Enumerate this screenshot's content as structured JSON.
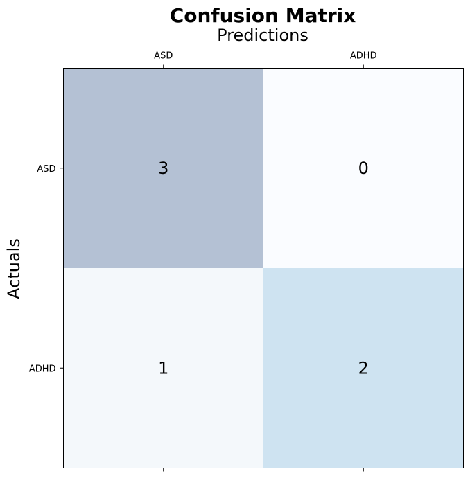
{
  "chart_data": {
    "type": "heatmap",
    "title": "Confusion Matrix",
    "xlabel": "Predictions",
    "ylabel": "Actuals",
    "x_categories": [
      "ASD",
      "ADHD"
    ],
    "y_categories": [
      "ASD",
      "ADHD"
    ],
    "values": [
      [
        3,
        0
      ],
      [
        1,
        2
      ]
    ],
    "colormap": "Blues",
    "xaxis_position": "top",
    "grid": false,
    "legend": "none",
    "colors": {
      "max": "#b4c1d4",
      "min": "#fafcff",
      "low": "#f4f8fb",
      "mid": "#cee3f1"
    }
  }
}
